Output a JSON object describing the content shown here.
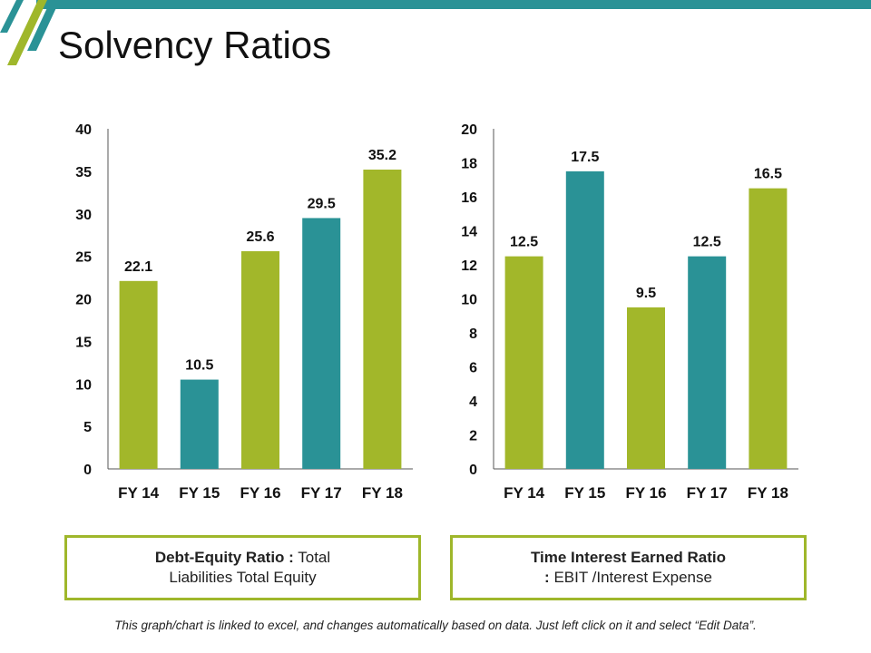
{
  "title": "Solvency Ratios",
  "colors": {
    "green": "#a2b72a",
    "teal": "#2a9296",
    "accent": "#2a9296"
  },
  "chart_data": [
    {
      "type": "bar",
      "categories": [
        "FY 14",
        "FY 15",
        "FY 16",
        "FY 17",
        "FY 18"
      ],
      "values": [
        22.1,
        10.5,
        25.6,
        29.5,
        35.2
      ],
      "bar_colors": [
        "#a2b72a",
        "#2a9296",
        "#a2b72a",
        "#2a9296",
        "#a2b72a"
      ],
      "ylim": [
        0,
        40
      ],
      "yticks": [
        0,
        5,
        10,
        15,
        20,
        25,
        30,
        35,
        40
      ],
      "grid": false,
      "title": "",
      "xlabel": "",
      "ylabel": ""
    },
    {
      "type": "bar",
      "categories": [
        "FY 14",
        "FY 15",
        "FY 16",
        "FY 17",
        "FY 18"
      ],
      "values": [
        12.5,
        17.5,
        9.5,
        12.5,
        16.5
      ],
      "bar_colors": [
        "#a2b72a",
        "#2a9296",
        "#a2b72a",
        "#2a9296",
        "#a2b72a"
      ],
      "ylim": [
        0,
        20
      ],
      "yticks": [
        0,
        2,
        4,
        6,
        8,
        10,
        12,
        14,
        16,
        18,
        20
      ],
      "grid": false,
      "title": "",
      "xlabel": "",
      "ylabel": ""
    }
  ],
  "captions": {
    "left": {
      "bold": "Debt-Equity Ratio :",
      "line1_rest": " Total",
      "line2": "Liabilities  Total Equity"
    },
    "right": {
      "bold_line1": "Time Interest Earned Ratio",
      "bold_line2": ":",
      "line2_rest": " EBIT /Interest Expense"
    }
  },
  "footnote": "This graph/chart is linked to excel, and changes automatically based on data. Just left click on it and select “Edit Data”."
}
